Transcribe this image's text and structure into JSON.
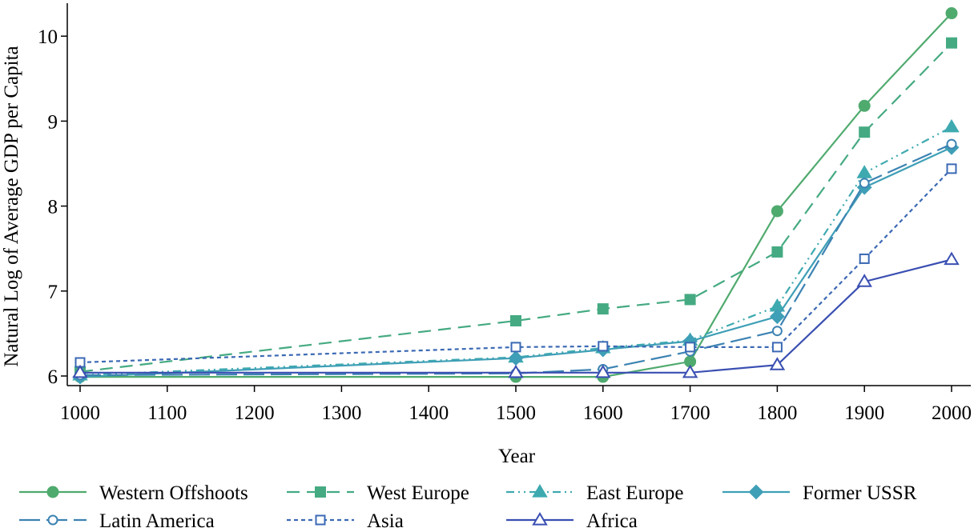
{
  "chart_data": {
    "type": "line",
    "xlabel": "Year",
    "ylabel": "Natural Log of Average GDP per Capita",
    "xlim": [
      1000,
      2000
    ],
    "ylim": [
      5.9,
      10.4
    ],
    "xticks": [
      "1000",
      "1100",
      "1200",
      "1300",
      "1400",
      "1500",
      "1600",
      "1700",
      "1800",
      "1900",
      "2000"
    ],
    "yticks": [
      "6",
      "7",
      "8",
      "9",
      "10"
    ],
    "x": [
      1000,
      1500,
      1600,
      1700,
      1800,
      1900,
      2000
    ],
    "legend_position": "bottom",
    "series": [
      {
        "name": "Western Offshoots",
        "color": "#4faa6e",
        "dash": "",
        "marker": "circle-filled",
        "values": [
          5.99,
          5.99,
          5.99,
          6.17,
          7.94,
          9.18,
          10.27
        ]
      },
      {
        "name": "West Europe",
        "color": "#45aa82",
        "dash": "16,9",
        "marker": "square-filled",
        "values": [
          6.05,
          6.65,
          6.79,
          6.9,
          7.46,
          8.87,
          9.92
        ]
      },
      {
        "name": "East Europe",
        "color": "#3eaab0",
        "dash": "10,5,2,5,2,5",
        "marker": "triangle-filled",
        "values": [
          6.01,
          6.22,
          6.33,
          6.42,
          6.82,
          8.39,
          8.93
        ]
      },
      {
        "name": "Former USSR",
        "color": "#3f9fb6",
        "dash": "",
        "marker": "diamond-filled",
        "values": [
          5.99,
          6.21,
          6.31,
          6.41,
          6.7,
          8.22,
          8.69
        ]
      },
      {
        "name": "Latin America",
        "color": "#3c83b2",
        "dash": "26,8",
        "marker": "circle-hollow",
        "values": [
          6.01,
          6.03,
          6.08,
          6.29,
          6.53,
          8.27,
          8.73
        ]
      },
      {
        "name": "Asia",
        "color": "#3b69b4",
        "dash": "5,4",
        "marker": "square-hollow",
        "values": [
          6.16,
          6.34,
          6.35,
          6.34,
          6.34,
          7.38,
          8.44
        ]
      },
      {
        "name": "Africa",
        "color": "#3a4fb2",
        "dash": "",
        "marker": "triangle-hollow",
        "values": [
          6.04,
          6.04,
          6.04,
          6.04,
          6.13,
          7.11,
          7.37
        ]
      }
    ]
  }
}
